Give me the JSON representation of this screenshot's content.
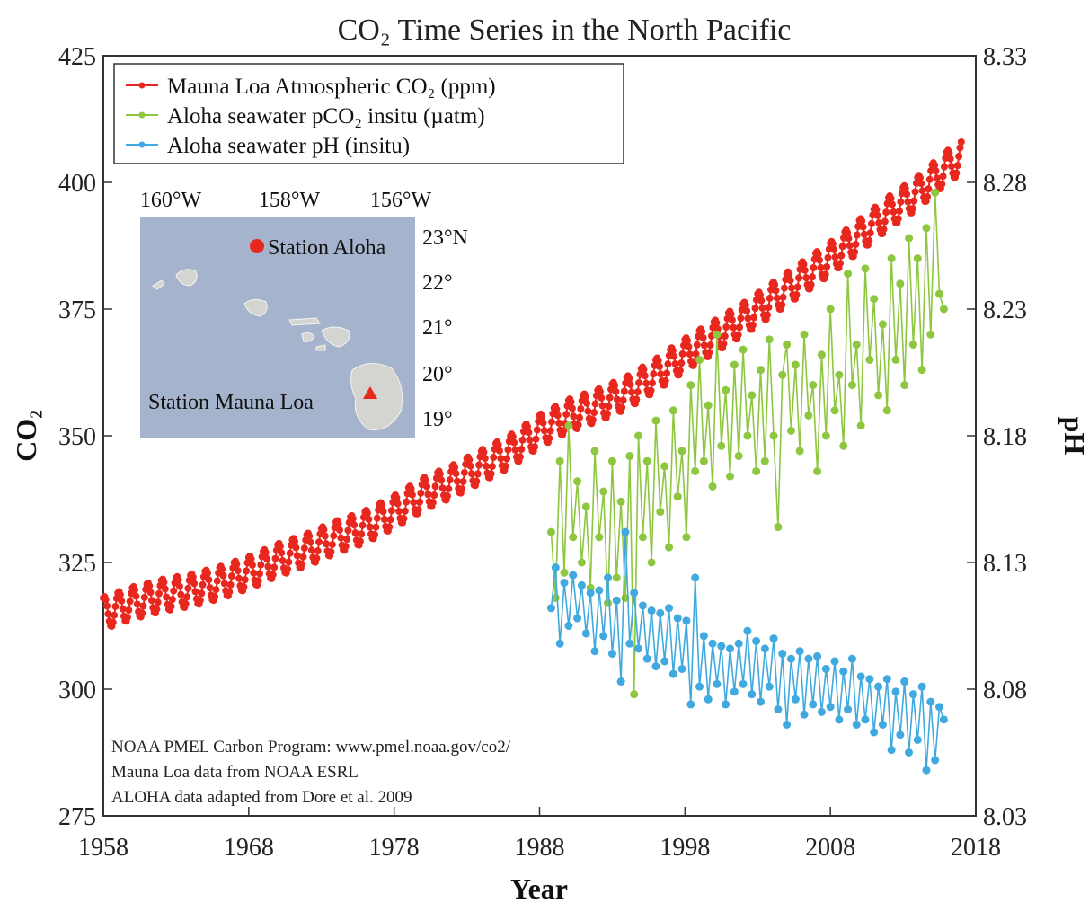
{
  "chart_data": {
    "type": "line",
    "title": "CO₂ Time Series in the North Pacific",
    "xlabel": "Year",
    "ylabel_left": "CO₂",
    "ylabel_right": "pH",
    "xlim": [
      1958,
      2018
    ],
    "ylim_left": [
      275,
      425
    ],
    "ylim_right": [
      8.03,
      8.33
    ],
    "x_ticks": [
      "1958",
      "1968",
      "1978",
      "1988",
      "1998",
      "2008",
      "2018"
    ],
    "y_left_ticks": [
      "275",
      "300",
      "325",
      "350",
      "375",
      "400",
      "425"
    ],
    "y_right_ticks": [
      "8.03",
      "8.08",
      "8.13",
      "8.18",
      "8.23",
      "8.28",
      "8.33"
    ],
    "legend_position": "top-left",
    "grid": false,
    "series": [
      {
        "name": "Mauna Loa Atmospheric CO₂ (ppm)",
        "axis": "left",
        "color": "#e8281e",
        "x": [
          1958,
          1960,
          1962,
          1964,
          1966,
          1968,
          1970,
          1972,
          1974,
          1976,
          1978,
          1980,
          1982,
          1984,
          1986,
          1988,
          1990,
          1992,
          1994,
          1996,
          1998,
          2000,
          2002,
          2004,
          2006,
          2008,
          2010,
          2012,
          2014,
          2016,
          2017
        ],
        "y": [
          315,
          317,
          318.5,
          319.5,
          321,
          323,
          325.5,
          327.5,
          330,
          332,
          335,
          338.5,
          341,
          344,
          347,
          351,
          354,
          356,
          358.5,
          362,
          366,
          369.5,
          373,
          377,
          381,
          385,
          389.5,
          394,
          398,
          403,
          405
        ],
        "seasonal_amplitude": 3.2
      },
      {
        "name": "Aloha seawater pCO₂ insitu (µatm)",
        "axis": "left",
        "color": "#8dc63f",
        "x": [
          1988.8,
          1989.1,
          1989.4,
          1989.7,
          1990.0,
          1990.3,
          1990.6,
          1990.9,
          1991.2,
          1991.5,
          1991.8,
          1992.1,
          1992.4,
          1992.7,
          1993.0,
          1993.3,
          1993.6,
          1993.9,
          1994.2,
          1994.5,
          1994.8,
          1995.1,
          1995.4,
          1995.7,
          1996.0,
          1996.3,
          1996.6,
          1996.9,
          1997.2,
          1997.5,
          1997.8,
          1998.1,
          1998.4,
          1998.7,
          1999.0,
          1999.3,
          1999.6,
          1999.9,
          2000.2,
          2000.5,
          2000.8,
          2001.1,
          2001.4,
          2001.7,
          2002.0,
          2002.3,
          2002.6,
          2002.9,
          2003.2,
          2003.5,
          2003.8,
          2004.1,
          2004.4,
          2004.7,
          2005.0,
          2005.3,
          2005.6,
          2005.9,
          2006.2,
          2006.5,
          2006.8,
          2007.1,
          2007.4,
          2007.7,
          2008.0,
          2008.3,
          2008.6,
          2008.9,
          2009.2,
          2009.5,
          2009.8,
          2010.1,
          2010.4,
          2010.7,
          2011.0,
          2011.3,
          2011.6,
          2011.9,
          2012.2,
          2012.5,
          2012.8,
          2013.1,
          2013.4,
          2013.7,
          2014.0,
          2014.3,
          2014.6,
          2014.9,
          2015.2,
          2015.5,
          2015.8
        ],
        "y": [
          331,
          318,
          345,
          323,
          352,
          330,
          341,
          325,
          336,
          320,
          347,
          330,
          339,
          317,
          345,
          322,
          337,
          318,
          346,
          299,
          350,
          330,
          345,
          325,
          353,
          335,
          344,
          328,
          355,
          338,
          347,
          330,
          360,
          343,
          365,
          345,
          356,
          340,
          370,
          348,
          359,
          342,
          364,
          346,
          367,
          350,
          358,
          343,
          363,
          345,
          369,
          350,
          332,
          362,
          368,
          351,
          364,
          347,
          370,
          354,
          360,
          343,
          366,
          350,
          375,
          355,
          362,
          348,
          382,
          360,
          368,
          352,
          383,
          365,
          377,
          358,
          372,
          355,
          385,
          365,
          380,
          360,
          389,
          368,
          385,
          363,
          391,
          370,
          398,
          378,
          375
        ]
      },
      {
        "name": "Aloha seawater pH (insitu)",
        "axis": "right",
        "color": "#3fa9e0",
        "x": [
          1988.8,
          1989.1,
          1989.4,
          1989.7,
          1990.0,
          1990.3,
          1990.6,
          1990.9,
          1991.2,
          1991.5,
          1991.8,
          1992.1,
          1992.4,
          1992.7,
          1993.0,
          1993.3,
          1993.6,
          1993.9,
          1994.2,
          1994.5,
          1994.8,
          1995.1,
          1995.4,
          1995.7,
          1996.0,
          1996.3,
          1996.6,
          1996.9,
          1997.2,
          1997.5,
          1997.8,
          1998.1,
          1998.4,
          1998.7,
          1999.0,
          1999.3,
          1999.6,
          1999.9,
          2000.2,
          2000.5,
          2000.8,
          2001.1,
          2001.4,
          2001.7,
          2002.0,
          2002.3,
          2002.6,
          2002.9,
          2003.2,
          2003.5,
          2003.8,
          2004.1,
          2004.4,
          2004.7,
          2005.0,
          2005.3,
          2005.6,
          2005.9,
          2006.2,
          2006.5,
          2006.8,
          2007.1,
          2007.4,
          2007.7,
          2008.0,
          2008.3,
          2008.6,
          2008.9,
          2009.2,
          2009.5,
          2009.8,
          2010.1,
          2010.4,
          2010.7,
          2011.0,
          2011.3,
          2011.6,
          2011.9,
          2012.2,
          2012.5,
          2012.8,
          2013.1,
          2013.4,
          2013.7,
          2014.0,
          2014.3,
          2014.6,
          2014.9,
          2015.2,
          2015.5,
          2015.8
        ],
        "y": [
          8.112,
          8.128,
          8.098,
          8.122,
          8.105,
          8.125,
          8.108,
          8.121,
          8.102,
          8.118,
          8.095,
          8.119,
          8.101,
          8.124,
          8.094,
          8.115,
          8.083,
          8.142,
          8.098,
          8.118,
          8.096,
          8.113,
          8.092,
          8.111,
          8.089,
          8.11,
          8.091,
          8.112,
          8.086,
          8.108,
          8.088,
          8.107,
          8.074,
          8.124,
          8.081,
          8.101,
          8.076,
          8.098,
          8.082,
          8.097,
          8.074,
          8.096,
          8.079,
          8.098,
          8.082,
          8.103,
          8.078,
          8.099,
          8.075,
          8.096,
          8.081,
          8.1,
          8.072,
          8.094,
          8.066,
          8.092,
          8.076,
          8.095,
          8.07,
          8.092,
          8.074,
          8.093,
          8.071,
          8.088,
          8.073,
          8.091,
          8.068,
          8.087,
          8.072,
          8.092,
          8.066,
          8.085,
          8.068,
          8.084,
          8.063,
          8.081,
          8.066,
          8.084,
          8.056,
          8.079,
          8.062,
          8.083,
          8.055,
          8.078,
          8.06,
          8.081,
          8.048,
          8.075,
          8.052,
          8.073,
          8.068
        ]
      }
    ]
  },
  "inset_map": {
    "lon_labels": [
      "160°W",
      "158°W",
      "156°W"
    ],
    "lat_labels": [
      "23°N",
      "22°",
      "21°",
      "20°",
      "19°"
    ],
    "station_aloha": "Station Aloha",
    "station_mauna_loa": "Station Mauna Loa",
    "ocean_color": "#a6b3cd"
  },
  "credits": [
    "NOAA PMEL Carbon Program: www.pmel.noaa.gov/co2/",
    "Mauna Loa data from NOAA ESRL",
    "ALOHA data adapted from Dore et al. 2009"
  ]
}
